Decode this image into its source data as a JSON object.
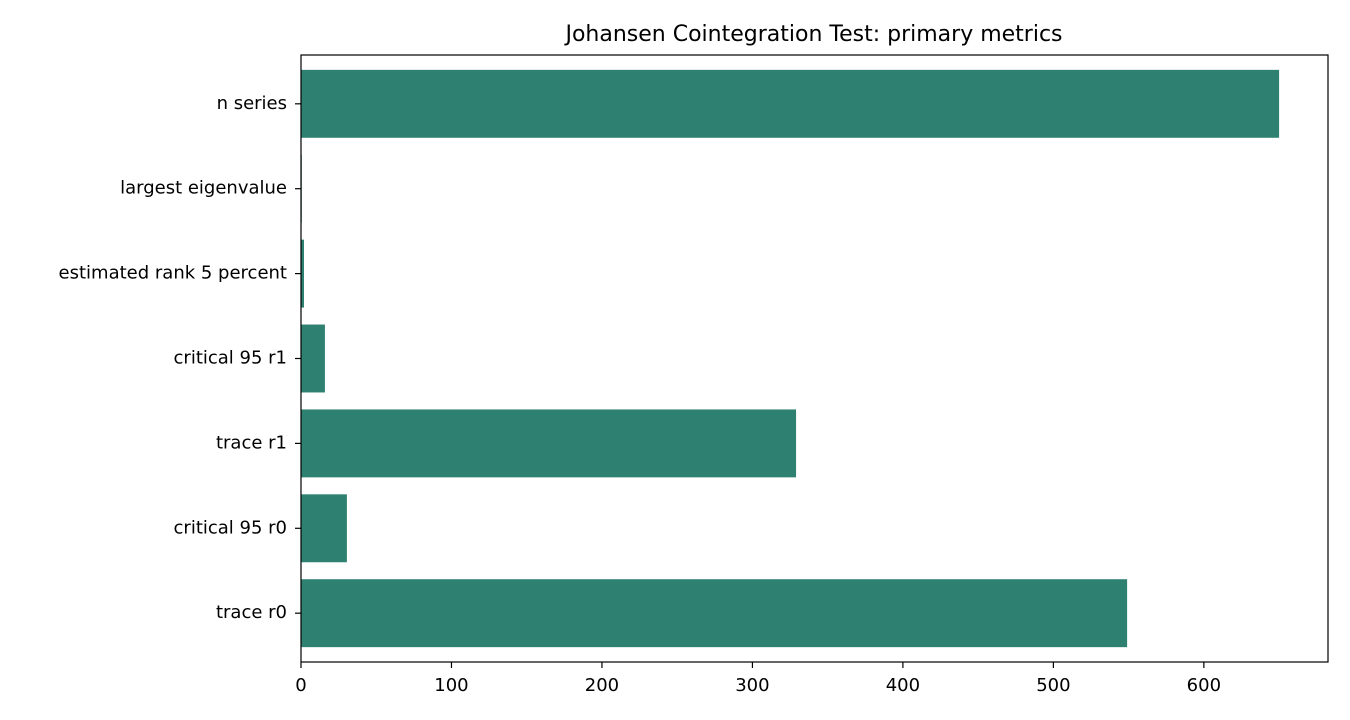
{
  "chart_data": {
    "type": "barh",
    "title": "Johansen Cointegration Test: primary metrics",
    "categories": [
      "trace r0",
      "critical 95 r0",
      "trace r1",
      "critical 95 r1",
      "estimated rank 5 percent",
      "largest eigenvalue",
      "n series"
    ],
    "values": [
      549,
      30.5,
      329,
      15.9,
      2,
      0.5,
      650
    ],
    "color": "#2e8070",
    "xlim": [
      0,
      682.5
    ],
    "xticks": [
      0,
      100,
      200,
      300,
      400,
      500,
      600
    ]
  }
}
